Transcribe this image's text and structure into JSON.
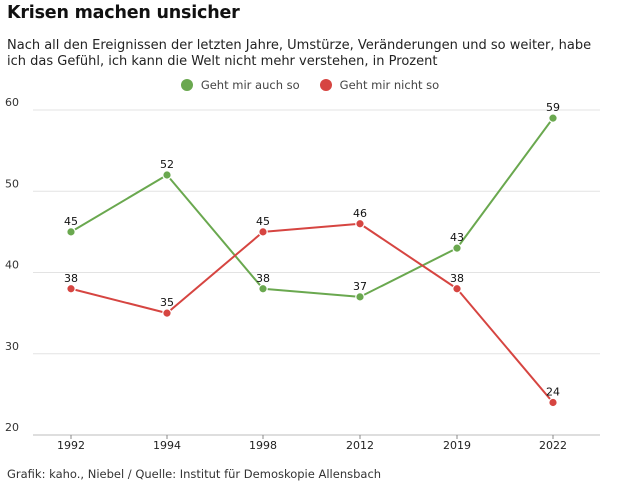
{
  "header": {
    "title": "Krisen machen unsicher",
    "subtitle": "Nach all den Ereignissen der letzten Jahre, Umstürze, Veränderungen und so weiter,  habe ich das Gefühl, ich kann die Welt nicht mehr verstehen, in Prozent"
  },
  "footer": {
    "source": "Grafik: kaho., Niebel / Quelle: Institut für Demoskopie Allensbach"
  },
  "chart_data": {
    "type": "line",
    "title": "Krisen machen unsicher",
    "subtitle": "Nach all den Ereignissen der letzten Jahre, Umstürze, Veränderungen und so weiter,  habe ich das Gefühl, ich kann die Welt nicht mehr verstehen, in Prozent",
    "xlabel": "",
    "ylabel": "",
    "categories": [
      "1992",
      "1994",
      "1998",
      "2012",
      "2019",
      "2022"
    ],
    "series": [
      {
        "name": "Geht mir auch so",
        "color": "#6aa84f",
        "values": [
          45,
          52,
          38,
          37,
          43,
          59
        ]
      },
      {
        "name": "Geht mir nicht so",
        "color": "#d64541",
        "values": [
          38,
          35,
          45,
          46,
          38,
          24
        ]
      }
    ],
    "ylim": [
      20,
      60
    ],
    "yticks": [
      20,
      30,
      40,
      50,
      60
    ],
    "grid": true,
    "legend": "top-center",
    "data_labels": true
  }
}
